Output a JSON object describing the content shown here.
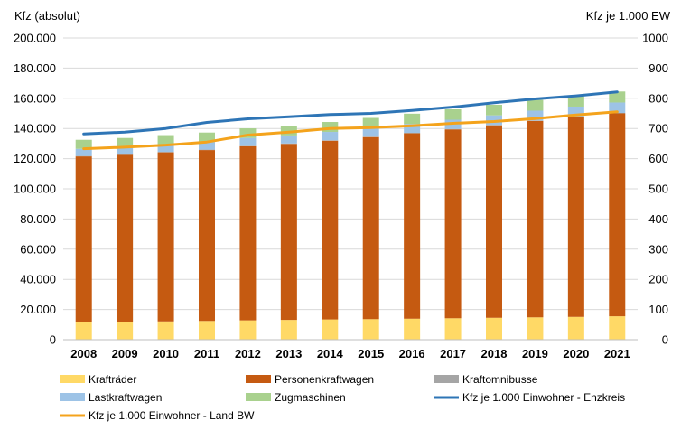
{
  "chart_data": {
    "type": "bar",
    "stacked": true,
    "title": "",
    "ylabel_left": "Kfz (absolut)",
    "ylabel_right": "Kfz je 1.000 EW",
    "ylim_left": [
      0,
      200000
    ],
    "ylim_right": [
      0,
      1000
    ],
    "yticks_left": [
      "0",
      "20.000",
      "40.000",
      "60.000",
      "80.000",
      "100.000",
      "120.000",
      "140.000",
      "160.000",
      "180.000",
      "200.000"
    ],
    "yticks_right": [
      "0",
      "100",
      "200",
      "300",
      "400",
      "500",
      "600",
      "700",
      "800",
      "900",
      "1000"
    ],
    "grid": true,
    "legend_position": "bottom",
    "categories": [
      "2008",
      "2009",
      "2010",
      "2011",
      "2012",
      "2013",
      "2014",
      "2015",
      "2016",
      "2017",
      "2018",
      "2019",
      "2020",
      "2021"
    ],
    "series": [
      {
        "name": "Krafträder",
        "kind": "bar",
        "color": "#FFD966",
        "values": [
          11500,
          11800,
          12100,
          12400,
          12800,
          13100,
          13400,
          13600,
          13900,
          14200,
          14500,
          14800,
          15100,
          15500
        ]
      },
      {
        "name": "Personenkraftwagen",
        "kind": "bar",
        "color": "#C55A11",
        "values": [
          110000,
          110700,
          112100,
          113300,
          115400,
          116700,
          118500,
          120700,
          122900,
          125200,
          127600,
          130200,
          132400,
          134500
        ]
      },
      {
        "name": "Kraftomnibusse",
        "kind": "bar",
        "color": "#A5A5A5",
        "values": [
          300,
          300,
          300,
          300,
          300,
          300,
          300,
          300,
          300,
          300,
          300,
          300,
          300,
          300
        ]
      },
      {
        "name": "Lastkraftwagen",
        "kind": "bar",
        "color": "#9DC3E6",
        "values": [
          4700,
          4800,
          4900,
          5000,
          5200,
          5300,
          5500,
          5700,
          5900,
          6100,
          6300,
          6500,
          6700,
          6900
        ]
      },
      {
        "name": "Zugmaschinen",
        "kind": "bar",
        "color": "#A9D18E",
        "values": [
          6000,
          6100,
          6200,
          6300,
          6400,
          6500,
          6600,
          6700,
          6800,
          6900,
          7000,
          7100,
          7200,
          7300
        ]
      },
      {
        "name": "Kfz je 1.000 Einwohner - Enzkreis",
        "kind": "line",
        "axis": "right",
        "color": "#2E75B6",
        "values": [
          682,
          688,
          700,
          720,
          732,
          739,
          746,
          750,
          760,
          771,
          785,
          798,
          808,
          821
        ]
      },
      {
        "name": "Kfz je 1.000 Einwohner - Land BW",
        "kind": "line",
        "axis": "right",
        "color": "#F4A31C",
        "values": [
          633,
          638,
          645,
          655,
          678,
          688,
          700,
          703,
          709,
          717,
          723,
          733,
          745,
          755
        ]
      }
    ],
    "legend": [
      {
        "label": "Krafträder",
        "kind": "box",
        "color": "#FFD966"
      },
      {
        "label": "Personenkraftwagen",
        "kind": "box",
        "color": "#C55A11"
      },
      {
        "label": "Kraftomnibusse",
        "kind": "box",
        "color": "#A5A5A5"
      },
      {
        "label": "Lastkraftwagen",
        "kind": "box",
        "color": "#9DC3E6"
      },
      {
        "label": "Zugmaschinen",
        "kind": "box",
        "color": "#A9D18E"
      },
      {
        "label": "Kfz je 1.000 Einwohner - Enzkreis",
        "kind": "line",
        "color": "#2E75B6"
      },
      {
        "label": "Kfz je 1.000 Einwohner - Land BW",
        "kind": "line",
        "color": "#F4A31C"
      }
    ],
    "gridline_color": "#D9D9D9"
  }
}
